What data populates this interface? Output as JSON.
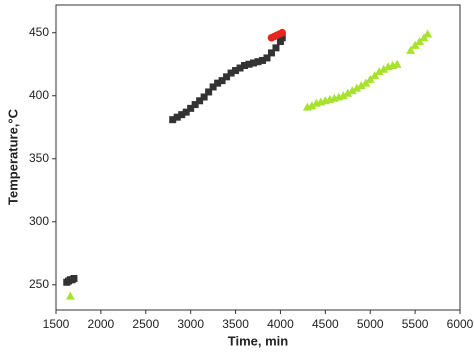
{
  "chart_data": {
    "type": "scatter",
    "x_label": "Time, min",
    "y_label": "Temperature,°C",
    "xlim": [
      1500,
      6000
    ],
    "ylim": [
      230,
      472
    ],
    "xticks": [
      1500,
      2000,
      2500,
      3000,
      3500,
      4000,
      4500,
      5000,
      5500,
      6000
    ],
    "yticks": [
      250,
      300,
      350,
      400,
      450
    ],
    "series": [
      {
        "color": "#333333",
        "marker": "square",
        "x": [
          1620,
          1640,
          1660,
          1680,
          1700,
          2800,
          2850,
          2900,
          2950,
          3000,
          3050,
          3100,
          3150,
          3200,
          3250,
          3300,
          3350,
          3400,
          3450,
          3500,
          3550,
          3600,
          3650,
          3700,
          3750,
          3800,
          3850,
          3900,
          3950,
          4000,
          4020
        ],
        "values": [
          252,
          253,
          254,
          254,
          255,
          381,
          383,
          385,
          387,
          390,
          393,
          396,
          399,
          403,
          407,
          410,
          412,
          415,
          418,
          420,
          422,
          424,
          425,
          426,
          427,
          428,
          430,
          434,
          438,
          443,
          446
        ]
      },
      {
        "color": "#e8261c",
        "marker": "circle",
        "x": [
          3900,
          3930,
          3960,
          3990,
          4020
        ],
        "values": [
          446,
          447,
          448,
          449,
          450
        ]
      },
      {
        "color": "#a6e22e",
        "marker": "triangle",
        "x": [
          1660,
          4300,
          4350,
          4400,
          4450,
          4500,
          4550,
          4600,
          4650,
          4700,
          4750,
          4800,
          4850,
          4900,
          4950,
          5000,
          5050,
          5100,
          5150,
          5200,
          5250,
          5300,
          5450,
          5500,
          5550,
          5600,
          5640
        ],
        "values": [
          241,
          391,
          392,
          394,
          395,
          396,
          397,
          398,
          399,
          400,
          402,
          404,
          406,
          408,
          410,
          413,
          416,
          419,
          421,
          423,
          424,
          425,
          436,
          440,
          443,
          446,
          449
        ]
      }
    ]
  }
}
